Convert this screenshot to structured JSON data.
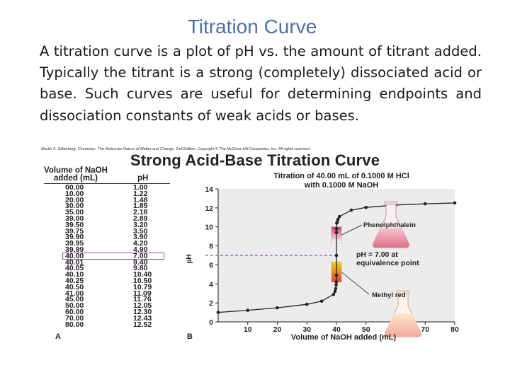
{
  "slide": {
    "title": "Titration Curve",
    "body": "A titration curve is a plot of pH vs. the amount of titrant added. Typically the titrant is a strong (completely) dissociated acid or base. Such curves are useful for determining endpoints and dissociation constants of weak acids or bases."
  },
  "figure": {
    "credit": "Martin S. Silberberg, Chemistry: The Molecular Nature of Matter and Change, 2nd Edition. Copyright © The McGraw-Hill Companies, Inc. All rights reserved.",
    "title": "Strong Acid-Base Titration Curve",
    "panel_a_label": "A",
    "panel_b_label": "B",
    "table": {
      "header_volume_line1": "Volume of NaOH",
      "header_volume_line2": "added (mL)",
      "header_ph": "pH",
      "highlighted_volume": "40.00",
      "rows": [
        {
          "volume": "00.00",
          "ph": "1.00"
        },
        {
          "volume": "10.00",
          "ph": "1.22"
        },
        {
          "volume": "20.00",
          "ph": "1.48"
        },
        {
          "volume": "30.00",
          "ph": "1.85"
        },
        {
          "volume": "35.00",
          "ph": "2.18"
        },
        {
          "volume": "39.00",
          "ph": "2.89"
        },
        {
          "volume": "39.50",
          "ph": "3.20"
        },
        {
          "volume": "39.75",
          "ph": "3.50"
        },
        {
          "volume": "39.90",
          "ph": "3.90"
        },
        {
          "volume": "39.95",
          "ph": "4.20"
        },
        {
          "volume": "39.99",
          "ph": "4.90"
        },
        {
          "volume": "40.00",
          "ph": "7.00"
        },
        {
          "volume": "40.01",
          "ph": "9.40"
        },
        {
          "volume": "40.05",
          "ph": "9.80"
        },
        {
          "volume": "40.10",
          "ph": "10.40"
        },
        {
          "volume": "40.25",
          "ph": "10.50"
        },
        {
          "volume": "40.50",
          "ph": "10.79"
        },
        {
          "volume": "41.00",
          "ph": "11.09"
        },
        {
          "volume": "45.00",
          "ph": "11.76"
        },
        {
          "volume": "50.00",
          "ph": "12.05"
        },
        {
          "volume": "60.00",
          "ph": "12.30"
        },
        {
          "volume": "70.00",
          "ph": "12.43"
        },
        {
          "volume": "80.00",
          "ph": "12.52"
        }
      ]
    }
  },
  "chart_data": {
    "type": "line",
    "title_line1": "Titration of 40.00 mL of 0.1000 M HCl",
    "title_line2": "with 0.1000 M NaOH",
    "xlabel": "Volume of NaOH added (mL)",
    "ylabel": "pH",
    "xlim": [
      0,
      80
    ],
    "ylim": [
      0,
      14
    ],
    "xticks": [
      10,
      20,
      30,
      40,
      50,
      60,
      70,
      80
    ],
    "yticks": [
      0,
      2,
      4,
      6,
      8,
      10,
      12,
      14
    ],
    "grid": false,
    "x": [
      0,
      10,
      20,
      30,
      35,
      39,
      39.5,
      39.75,
      39.9,
      39.95,
      39.99,
      40,
      40.01,
      40.05,
      40.1,
      40.25,
      40.5,
      41,
      45,
      50,
      60,
      70,
      80
    ],
    "y": [
      1.0,
      1.22,
      1.48,
      1.85,
      2.18,
      2.89,
      3.2,
      3.5,
      3.9,
      4.2,
      4.9,
      7.0,
      9.4,
      9.8,
      10.4,
      10.5,
      10.79,
      11.09,
      11.76,
      12.05,
      12.3,
      12.43,
      12.52
    ],
    "equivalence_point": {
      "x": 40,
      "y": 7.0,
      "label_line1": "pH = 7.00 at",
      "label_line2": "equivalence point"
    },
    "indicators": [
      {
        "name": "Phenolphthalein",
        "ph_range": [
          8.3,
          10.0
        ],
        "colors": [
          "#ffffff",
          "#d63a6a"
        ]
      },
      {
        "name": "Methyl red",
        "ph_range": [
          4.2,
          6.3
        ],
        "colors": [
          "#e8402c",
          "#f2d21a"
        ]
      }
    ],
    "colors": {
      "plot_background": "#ececec",
      "curve": "#222222",
      "equivalence_line": "#8a4fb0"
    }
  }
}
